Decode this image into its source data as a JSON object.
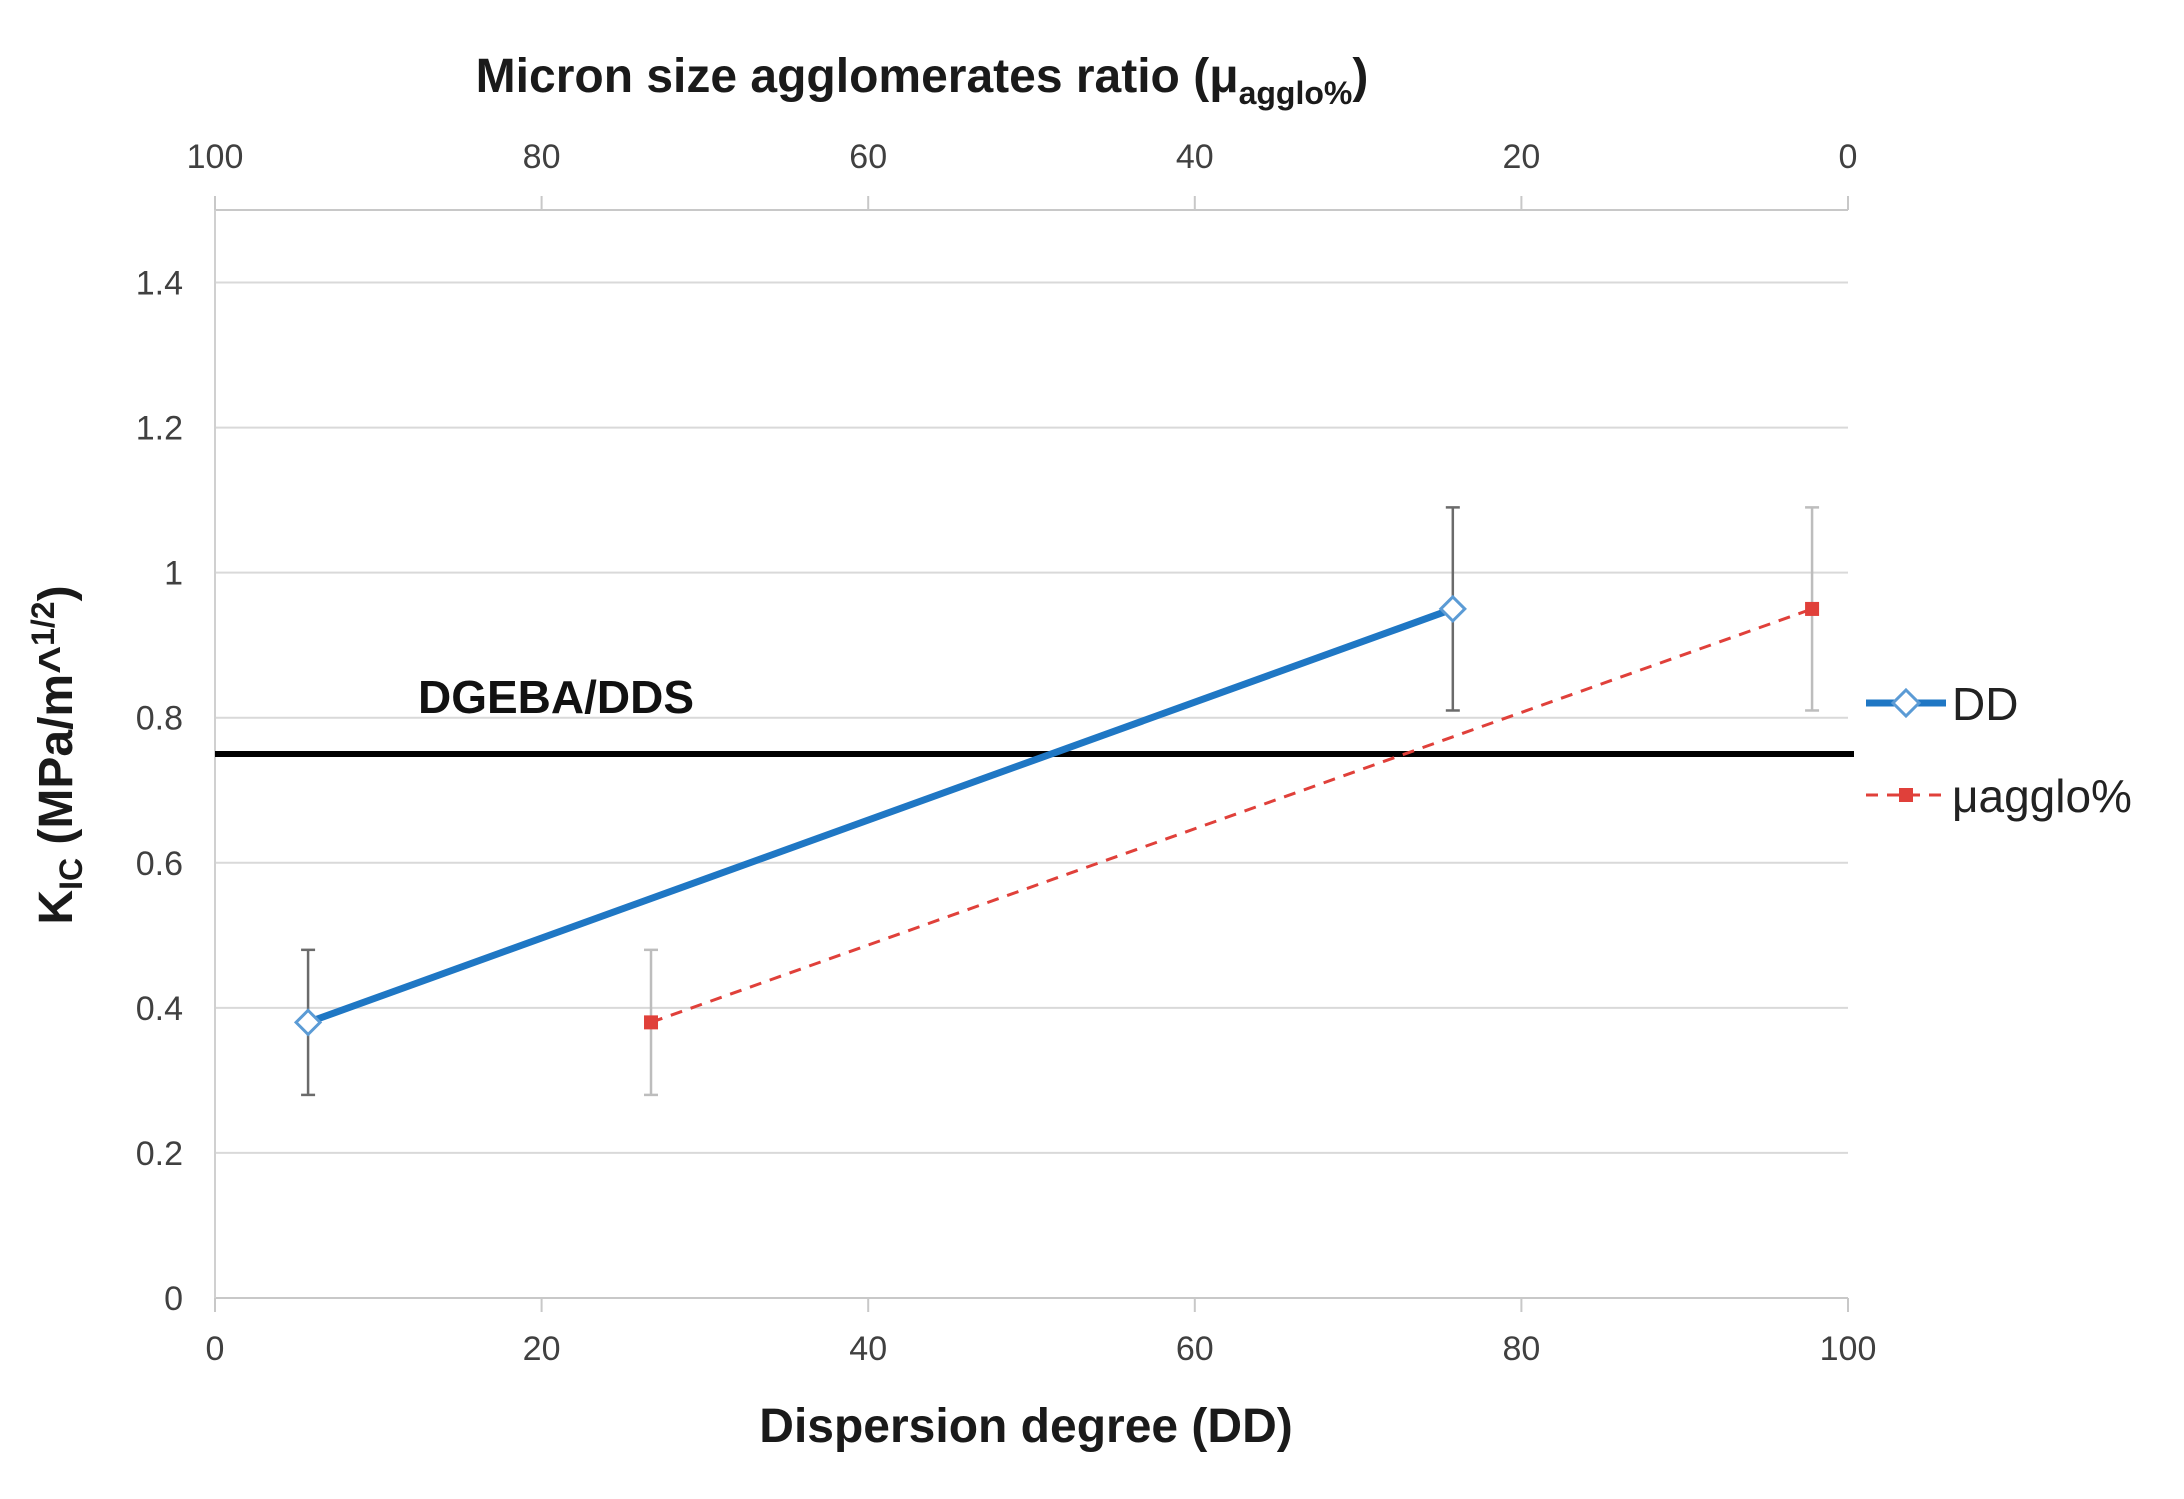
{
  "chart_data": {
    "type": "line",
    "title": "",
    "xlabel": "Dispersion degree (DD)",
    "x2label": {
      "main": "Micron size agglomerates ratio (μ",
      "sub": "agglo%",
      "close": ")"
    },
    "ylabel": {
      "main": "K",
      "sub": "IC",
      "mid": " (MPa/m^",
      "sup": "1/2",
      "close": ")"
    },
    "xlim": [
      0,
      100
    ],
    "x2lim": [
      100,
      0
    ],
    "ylim": [
      0,
      1.5
    ],
    "x_ticks": [
      "0",
      "20",
      "40",
      "60",
      "80",
      "100"
    ],
    "x2_ticks": [
      "100",
      "80",
      "60",
      "40",
      "20",
      "0"
    ],
    "y_ticks": [
      "0",
      "0.2",
      "0.4",
      "0.6",
      "0.8",
      "1",
      "1.2",
      "1.4"
    ],
    "y_tick_values": [
      0,
      0.2,
      0.4,
      0.6,
      0.8,
      1.0,
      1.2,
      1.4
    ],
    "x_tick_values": [
      0,
      20,
      40,
      60,
      80,
      100
    ],
    "x2_tick_values": [
      100,
      80,
      60,
      40,
      20,
      0
    ],
    "grid": true,
    "legend_position": "right",
    "series": [
      {
        "name": "DD",
        "axis": "bottom",
        "x": [
          5.7,
          75.8
        ],
        "y": [
          0.38,
          0.95
        ],
        "err": [
          0.1,
          0.14
        ],
        "color": "#1f77c4",
        "marker": "diamond-open",
        "line": "solid"
      },
      {
        "name": "μagglo%",
        "axis": "top",
        "x": [
          73.3,
          2.2
        ],
        "y": [
          0.38,
          0.95
        ],
        "err": [
          0.1,
          0.14
        ],
        "color": "#e0403a",
        "marker": "square",
        "line": "dashed"
      }
    ],
    "reference_line": {
      "label": "DGEBA/DDS",
      "y": 0.75,
      "color": "#000000"
    }
  }
}
